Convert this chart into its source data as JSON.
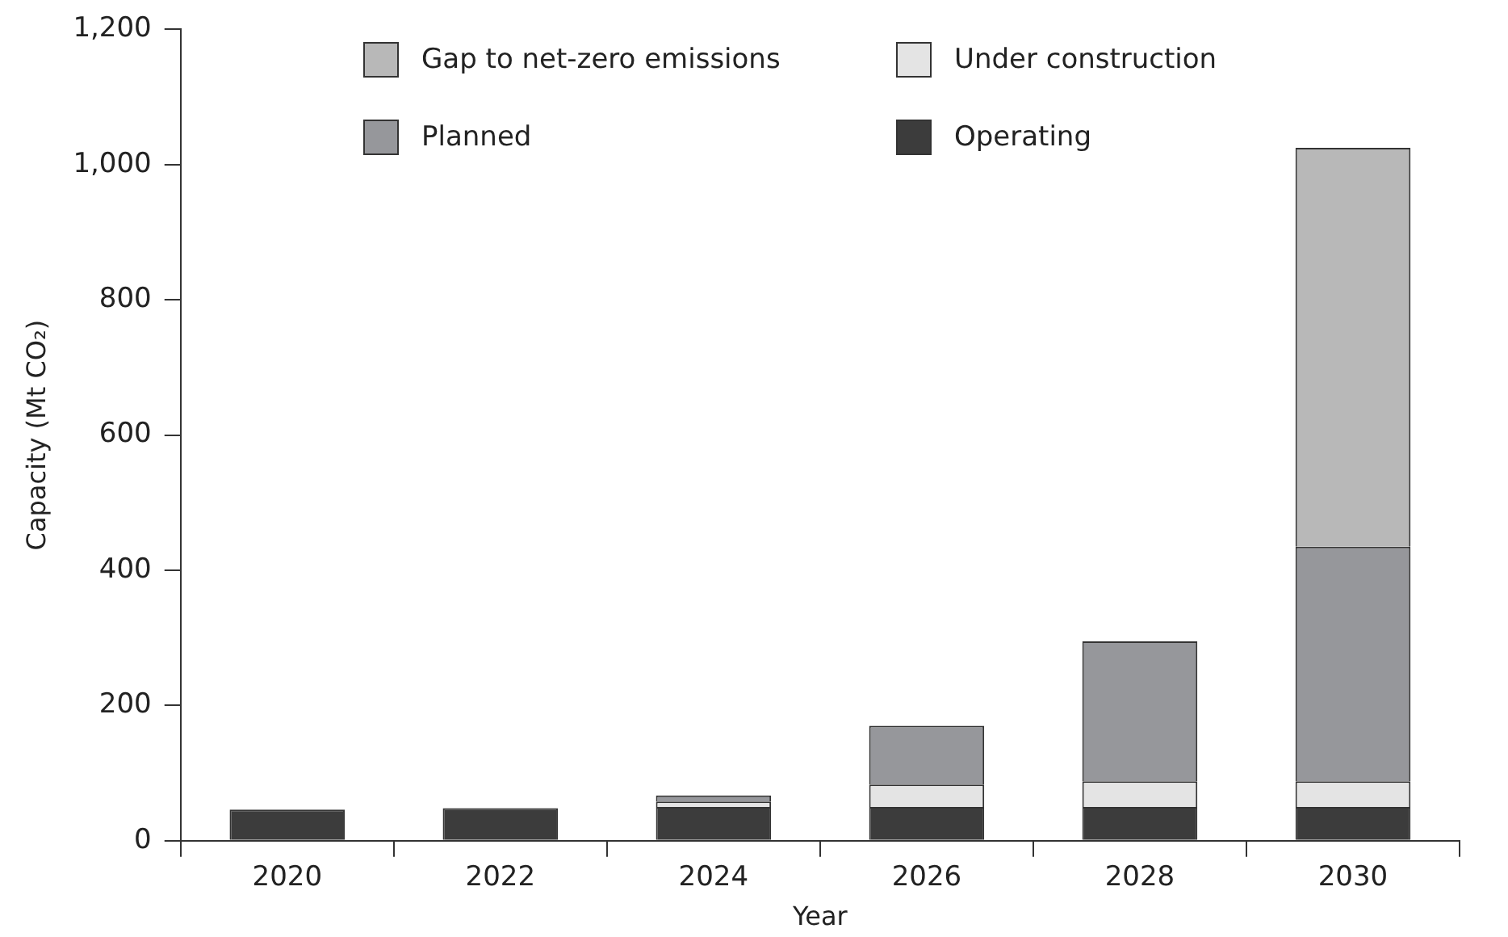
{
  "chart_data": {
    "type": "bar",
    "stacked": true,
    "xlabel": "Year",
    "ylabel": "Capacity (Mt CO₂)",
    "categories": [
      "2020",
      "2022",
      "2024",
      "2026",
      "2028",
      "2030"
    ],
    "series": [
      {
        "name": "Operating",
        "color": "#3c3c3c",
        "values": [
          46,
          48,
          50,
          50,
          50,
          50
        ]
      },
      {
        "name": "Under construction",
        "color": "#e4e4e4",
        "values": [
          null,
          null,
          8,
          33,
          38,
          38
        ]
      },
      {
        "name": "Planned",
        "color": "#96979b",
        "values": [
          null,
          null,
          9,
          87,
          207,
          347
        ]
      },
      {
        "name": "Gap to net-zero emissions",
        "color": "#b8b8b8",
        "values": [
          null,
          null,
          null,
          null,
          null,
          590
        ]
      }
    ],
    "ylim": [
      0,
      1200
    ],
    "yticks": [
      0,
      {
        "value": 200,
        "label": "200"
      },
      {
        "value": 400,
        "label": "400"
      },
      {
        "value": 600,
        "label": "600"
      },
      {
        "value": 800,
        "label": "800"
      },
      {
        "value": 1000,
        "label": "1,000"
      },
      {
        "value": 1200,
        "label": "1,200"
      }
    ],
    "grid": false,
    "legend": "top"
  }
}
